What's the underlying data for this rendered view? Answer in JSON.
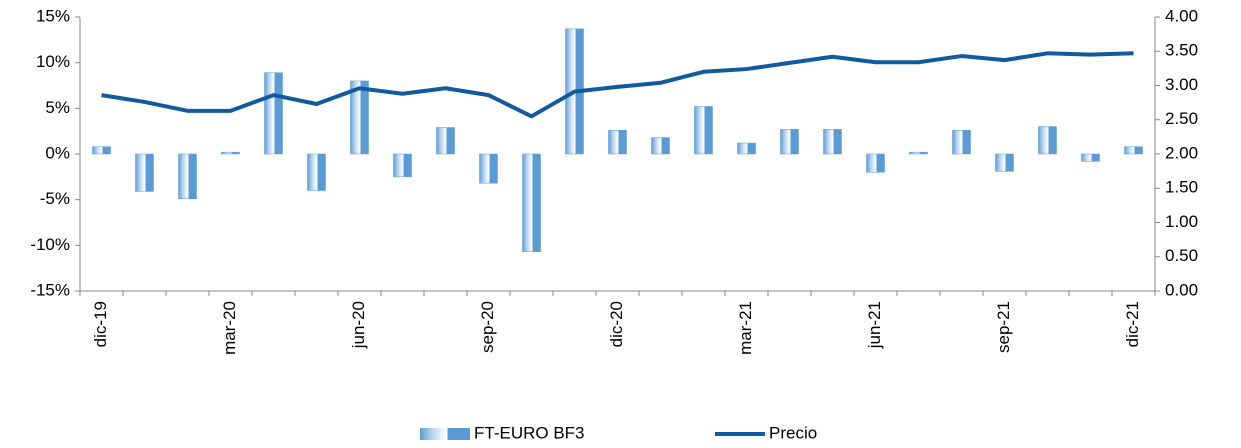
{
  "chart_data": {
    "type": "bar-line",
    "categories": [
      "dic-19",
      null,
      null,
      "mar-20",
      null,
      null,
      "jun-20",
      null,
      null,
      "sep-20",
      null,
      null,
      "dic-20",
      null,
      null,
      "mar-21",
      null,
      null,
      "jun-21",
      null,
      null,
      "sep-21",
      null,
      null,
      "dic-21"
    ],
    "series": [
      {
        "name": "FT-EURO BF3",
        "type": "bar",
        "color": "#5b9bd5",
        "values": [
          0.8,
          -4.1,
          -4.9,
          0.2,
          8.9,
          -4.0,
          8.0,
          -2.5,
          2.9,
          -3.2,
          -10.7,
          13.7,
          2.6,
          1.8,
          5.2,
          1.2,
          2.7,
          2.7,
          -2.0,
          0.2,
          2.6,
          -1.9,
          3.0,
          -0.8,
          0.8
        ]
      },
      {
        "name": "Precio",
        "type": "line",
        "axis": "y2",
        "color": "#115a9e",
        "values": [
          2.86,
          2.76,
          2.63,
          2.63,
          2.86,
          2.73,
          2.96,
          2.88,
          2.96,
          2.86,
          2.55,
          2.91,
          2.98,
          3.04,
          3.2,
          3.24,
          3.33,
          3.42,
          3.34,
          3.34,
          3.43,
          3.37,
          3.47,
          3.45,
          3.47
        ]
      }
    ],
    "ylim": [
      -15,
      15
    ],
    "yticks": [
      {
        "value": -15,
        "label": "-15%"
      },
      {
        "value": -10,
        "label": "-10%"
      },
      {
        "value": -5,
        "label": "-5%"
      },
      {
        "value": 0,
        "label": "0%"
      },
      {
        "value": 5,
        "label": "5%"
      },
      {
        "value": 10,
        "label": "10%"
      },
      {
        "value": 15,
        "label": "15%"
      }
    ],
    "y2lim": [
      0,
      4
    ],
    "y2ticks": [
      {
        "value": 0,
        "label": "0.00"
      },
      {
        "value": 0.5,
        "label": "0.50"
      },
      {
        "value": 1,
        "label": "1.00"
      },
      {
        "value": 1.5,
        "label": "1.50"
      },
      {
        "value": 2,
        "label": "2.00"
      },
      {
        "value": 2.5,
        "label": "2.50"
      },
      {
        "value": 3,
        "label": "3.00"
      },
      {
        "value": 3.5,
        "label": "3.50"
      },
      {
        "value": 4,
        "label": "4.00"
      }
    ],
    "grid": false,
    "legend": "bottom"
  }
}
